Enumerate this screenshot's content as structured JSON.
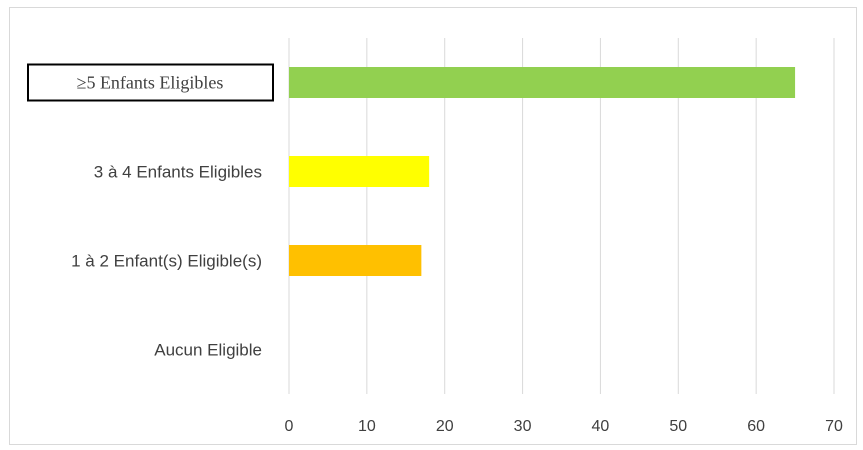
{
  "chart_data": {
    "type": "bar",
    "orientation": "horizontal",
    "categories": [
      "≥5 Enfants Eligibles",
      "3 à 4 Enfants Eligibles",
      "1 à 2 Enfant(s) Eligible(s)",
      "Aucun Eligible"
    ],
    "values": [
      65,
      18,
      17,
      0
    ],
    "colors": [
      "#92d050",
      "#ffff00",
      "#ffc000",
      "#a6a6a6"
    ],
    "xlim": [
      0,
      70
    ],
    "xticks": [
      0,
      10,
      20,
      30,
      40,
      50,
      60,
      70
    ],
    "grid": true,
    "legend": "none"
  }
}
